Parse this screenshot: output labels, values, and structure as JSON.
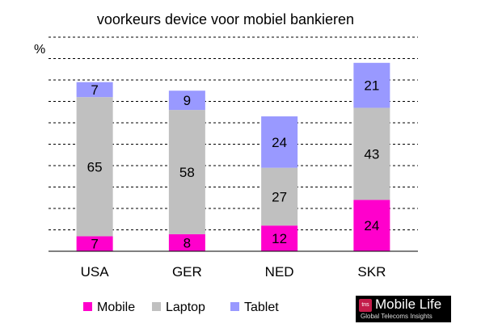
{
  "chart_data": {
    "type": "bar",
    "stacked": true,
    "title": "voorkeurs device voor mobiel bankieren",
    "ylabel": "%",
    "xlabel": "",
    "ylim": [
      0,
      100
    ],
    "grid": true,
    "legend_position": "bottom",
    "categories": [
      "USA",
      "GER",
      "NED",
      "SKR"
    ],
    "series": [
      {
        "name": "Mobile",
        "color": "#ff00cc",
        "values": [
          7,
          8,
          12,
          24
        ]
      },
      {
        "name": "Laptop",
        "color": "#c0c0c0",
        "values": [
          65,
          58,
          27,
          43
        ]
      },
      {
        "name": "Tablet",
        "color": "#9999ff",
        "values": [
          7,
          9,
          24,
          21
        ]
      }
    ]
  },
  "logo": {
    "badge": "tns",
    "name": "Mobile Life",
    "tagline": "Global Telecoms Insights"
  }
}
